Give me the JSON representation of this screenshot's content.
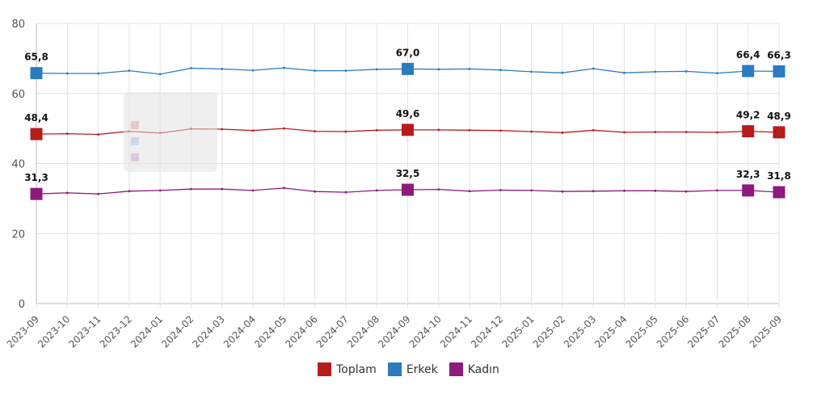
{
  "chart_data": {
    "type": "line",
    "categories": [
      "2023-09",
      "2023-10",
      "2023-11",
      "2023-12",
      "2024-01",
      "2024-02",
      "2024-03",
      "2024-04",
      "2024-05",
      "2024-06",
      "2024-07",
      "2024-08",
      "2024-09",
      "2024-10",
      "2024-11",
      "2024-12",
      "2025-01",
      "2025-02",
      "2025-03",
      "2025-04",
      "2025-05",
      "2025-06",
      "2025-07",
      "2025-08",
      "2025-09"
    ],
    "ylim": [
      0,
      80
    ],
    "yticks": [
      "0",
      "20",
      "40",
      "60",
      "80"
    ],
    "grid": true,
    "legend_position": "bottom",
    "series": [
      {
        "name": "Toplam",
        "color": "#b71c1c",
        "values": [
          48.4,
          48.5,
          48.3,
          49.2,
          48.7,
          49.9,
          49.8,
          49.4,
          50.0,
          49.2,
          49.1,
          49.5,
          49.6,
          49.6,
          49.5,
          49.4,
          49.1,
          48.8,
          49.5,
          48.9,
          49.0,
          49.0,
          48.9,
          49.2,
          48.9
        ],
        "labels": [
          {
            "index": 0,
            "text": "48,4"
          },
          {
            "index": 12,
            "text": "49,6"
          },
          {
            "index": 23,
            "text": "49,2"
          },
          {
            "index": 24,
            "text": "48,9"
          }
        ]
      },
      {
        "name": "Erkek",
        "color": "#2b7bc0",
        "values": [
          65.8,
          65.7,
          65.7,
          66.5,
          65.5,
          67.2,
          67.0,
          66.6,
          67.3,
          66.5,
          66.5,
          66.9,
          67.0,
          66.9,
          67.0,
          66.7,
          66.2,
          65.9,
          67.1,
          65.9,
          66.2,
          66.3,
          65.8,
          66.4,
          66.3
        ],
        "labels": [
          {
            "index": 0,
            "text": "65,8"
          },
          {
            "index": 12,
            "text": "67,0"
          },
          {
            "index": 23,
            "text": "66,4"
          },
          {
            "index": 24,
            "text": "66,3"
          }
        ]
      },
      {
        "name": "Kadın",
        "color": "#8e1a7c",
        "values": [
          31.3,
          31.6,
          31.3,
          32.1,
          32.3,
          32.7,
          32.7,
          32.3,
          33.0,
          32.0,
          31.8,
          32.3,
          32.5,
          32.6,
          32.1,
          32.4,
          32.3,
          32.0,
          32.1,
          32.2,
          32.2,
          32.0,
          32.3,
          32.3,
          31.8
        ],
        "labels": [
          {
            "index": 0,
            "text": "31,3"
          },
          {
            "index": 12,
            "text": "32,5"
          },
          {
            "index": 23,
            "text": "32,3"
          },
          {
            "index": 24,
            "text": "31,8"
          }
        ]
      }
    ]
  }
}
